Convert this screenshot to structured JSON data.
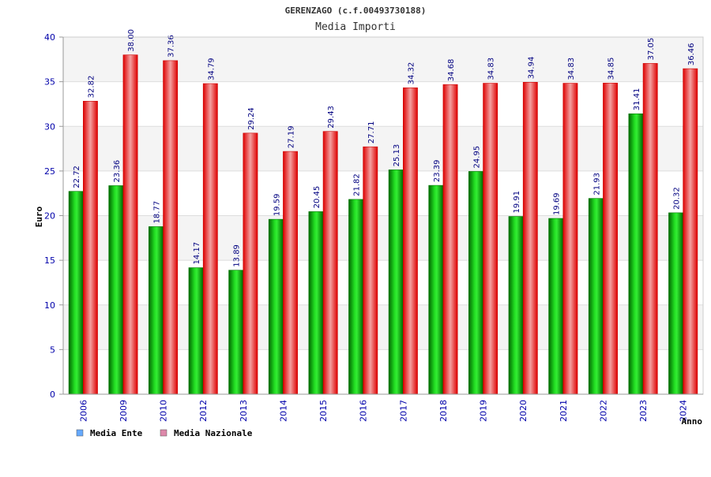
{
  "chart_data": {
    "type": "bar",
    "title": "GERENZAGO (c.f.00493730188)",
    "subtitle": "Media Importi",
    "xlabel": "Anno",
    "ylabel": "Euro",
    "ylim": [
      0,
      40
    ],
    "yticks": [
      0,
      5,
      10,
      15,
      20,
      25,
      30,
      35,
      40
    ],
    "grid": "horizontal bands",
    "legend_position": "bottom-left",
    "categories": [
      "2006",
      "2009",
      "2010",
      "2012",
      "2013",
      "2014",
      "2015",
      "2016",
      "2017",
      "2018",
      "2019",
      "2020",
      "2021",
      "2022",
      "2023",
      "2024"
    ],
    "series": [
      {
        "name": "Media Ente",
        "legend_color": "#66aaff",
        "bar_color": "#00aa00",
        "values": [
          22.72,
          23.36,
          18.77,
          14.17,
          13.89,
          19.59,
          20.45,
          21.82,
          25.13,
          23.39,
          24.95,
          19.91,
          19.69,
          21.93,
          31.41,
          20.32
        ],
        "labels": [
          "22.72",
          "23.36",
          "18.77",
          "14.17",
          "13.89",
          "19.59",
          "20.45",
          "21.82",
          "25.13",
          "23.39",
          "24.95",
          "19.91",
          "19.69",
          "21.93",
          "31.41",
          "20.32"
        ]
      },
      {
        "name": "Media Nazionale",
        "legend_color": "#dd88aa",
        "bar_color": "#ee1111",
        "values": [
          32.82,
          38.0,
          37.36,
          34.79,
          29.24,
          27.19,
          29.43,
          27.71,
          34.32,
          34.68,
          34.83,
          34.94,
          34.83,
          34.85,
          37.05,
          36.46
        ],
        "labels": [
          "32.82",
          "38.00",
          "37.36",
          "34.79",
          "29.24",
          "27.19",
          "29.43",
          "27.71",
          "34.32",
          "34.68",
          "34.83",
          "34.94",
          "34.83",
          "34.85",
          "37.05",
          "36.46"
        ]
      }
    ]
  },
  "colors": {
    "tick_text": "#0000aa",
    "value_text": "#000080",
    "band_light": "#f4f4f4",
    "band_white": "#ffffff"
  }
}
